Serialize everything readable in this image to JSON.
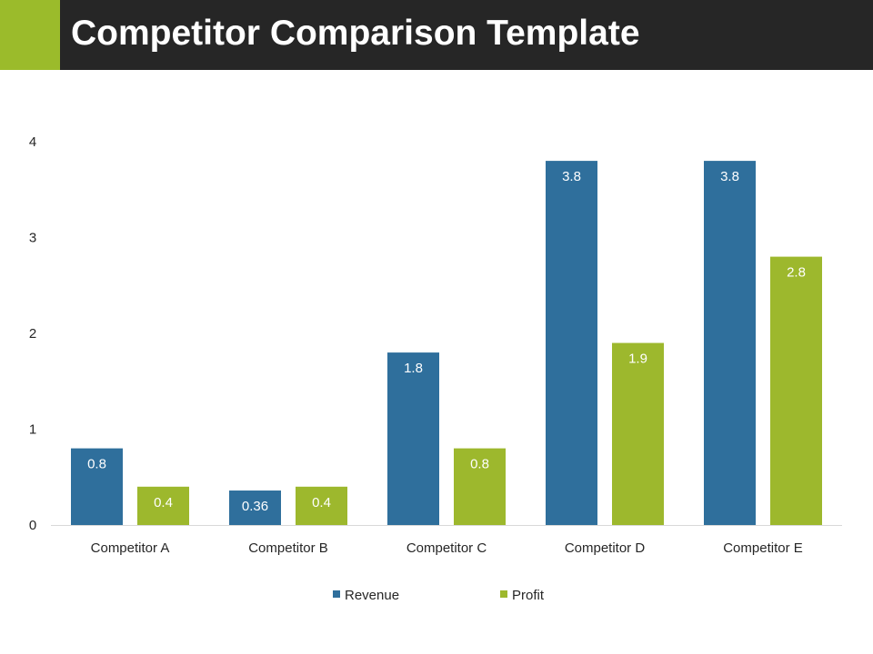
{
  "header": {
    "title": "Competitor Comparison Template"
  },
  "colors": {
    "header_background": "#262626",
    "accent": "#9bbb2b",
    "axis_line": "#d9d9d9",
    "text": "#262626",
    "data_label": "#ffffff"
  },
  "chart_data": {
    "type": "bar",
    "categories": [
      "Competitor A",
      "Competitor B",
      "Competitor C",
      "Competitor D",
      "Competitor E"
    ],
    "series": [
      {
        "name": "Revenue",
        "color": "#2f6f9c",
        "values": [
          0.8,
          0.36,
          1.8,
          3.8,
          3.8
        ]
      },
      {
        "name": "Profit",
        "color": "#9db82d",
        "values": [
          0.4,
          0.4,
          0.8,
          1.9,
          2.8
        ]
      }
    ],
    "ylim": [
      0,
      4
    ],
    "yticks": [
      0,
      1,
      2,
      3,
      4
    ],
    "grid": false,
    "data_labels": true,
    "legend": "bottom"
  }
}
